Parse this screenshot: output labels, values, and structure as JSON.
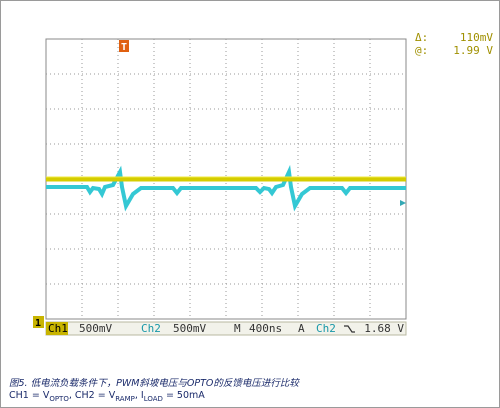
{
  "readouts": {
    "delta_label": "Δ:",
    "delta_value": "110mV",
    "at_label": "@:",
    "at_value": "1.99 V"
  },
  "markers": {
    "trigger": "T",
    "ch1": "1"
  },
  "status": {
    "ch1": "Ch1",
    "ch1_scale": "500mV",
    "ch2": "Ch2",
    "ch2_scale": "500mV",
    "timebase_label": "M",
    "timebase": "400ns",
    "trigger_mode": "A",
    "trigger_source": "Ch2",
    "trigger_level": "1.68 V"
  },
  "caption": {
    "line1": "图5. 低电流负载条件下，PWM斜坡电压与OPTO的反馈电压进行比较",
    "line2": [
      "CH1 = V",
      "OPTO",
      ", CH2 = V",
      "RAMP",
      ", I",
      "LOAD",
      " = 50mA"
    ]
  }
}
